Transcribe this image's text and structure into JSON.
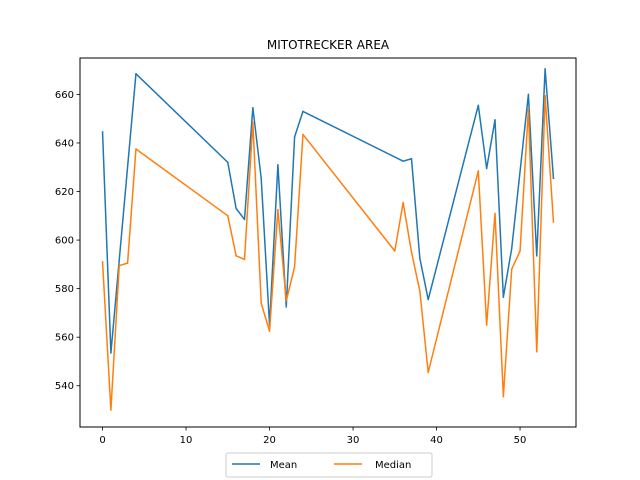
{
  "chart_data": {
    "type": "line",
    "title": "MITOTRECKER AREA",
    "xlabel": "",
    "ylabel": "",
    "xlim": [
      -2.7,
      56.7
    ],
    "ylim": [
      523,
      675
    ],
    "x_ticks": [
      0,
      10,
      20,
      30,
      40,
      50
    ],
    "y_ticks": [
      540,
      560,
      580,
      600,
      620,
      640,
      660
    ],
    "grid": false,
    "legend_position": "bottom-center",
    "series": [
      {
        "name": "Mean",
        "color": "#1f77b4",
        "x": [
          0,
          1,
          4,
          15,
          16,
          17,
          18,
          19,
          20,
          21,
          22,
          23,
          24,
          36,
          37,
          38,
          39,
          45,
          46,
          47,
          48,
          49,
          51,
          52,
          53,
          54
        ],
        "y": [
          644.5,
          553.5,
          668.5,
          632,
          613,
          608.5,
          654.5,
          625.5,
          565,
          631,
          572.5,
          642.5,
          653,
          632.5,
          633.5,
          592.5,
          575.5,
          655.5,
          629.5,
          649.5,
          576.5,
          596.5,
          660,
          593.5,
          670.5,
          625.5
        ]
      },
      {
        "name": "Median",
        "color": "#ff7f0e",
        "x": [
          0,
          1,
          2,
          3,
          4,
          15,
          16,
          17,
          18,
          19,
          20,
          21,
          22,
          23,
          24,
          35,
          36,
          37,
          38,
          39,
          45,
          46,
          47,
          48,
          49,
          50,
          51,
          52,
          53,
          54
        ],
        "y": [
          591,
          530,
          589.5,
          590.5,
          637.5,
          610,
          593.5,
          592,
          648.5,
          574,
          562.5,
          612.5,
          575,
          589,
          643.5,
          595.5,
          615.5,
          595,
          579,
          545.5,
          628.5,
          565,
          611,
          535.5,
          588,
          595.5,
          654,
          554,
          659.5,
          607.5
        ]
      }
    ]
  }
}
